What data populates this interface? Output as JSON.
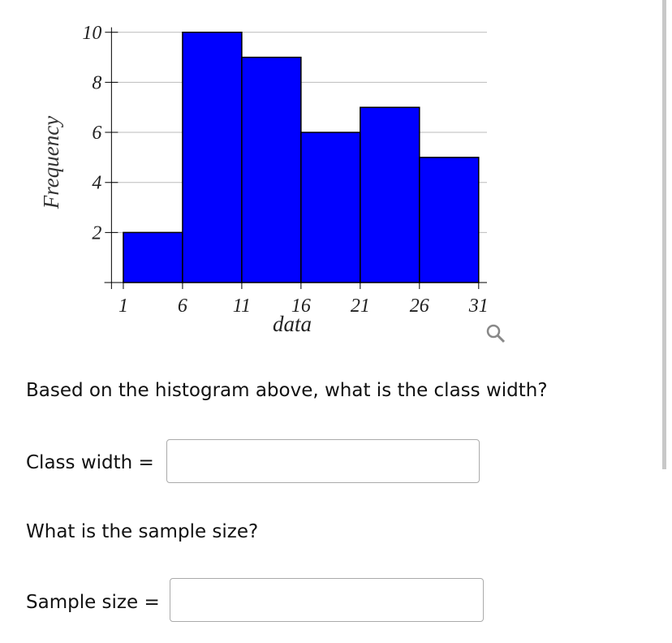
{
  "chart_data": {
    "type": "histogram",
    "xlabel": "data",
    "ylabel": "Frequency",
    "bins": [
      1,
      6,
      11,
      16,
      21,
      26,
      31
    ],
    "values": [
      2,
      10,
      9,
      6,
      7,
      5
    ],
    "color": "#0000ff",
    "xlim": [
      -0.6,
      31.7
    ],
    "xticks": [
      1,
      6,
      11,
      16,
      21,
      26,
      31
    ],
    "ylim": [
      0,
      10.2
    ],
    "yticks": [
      2,
      4,
      6,
      8,
      10
    ],
    "grid": true
  },
  "questions": [
    {
      "prompt": "Based on the histogram above, what is the class width?",
      "label": "Class width ="
    },
    {
      "prompt": "What is the sample size?",
      "label": "Sample size ="
    }
  ]
}
